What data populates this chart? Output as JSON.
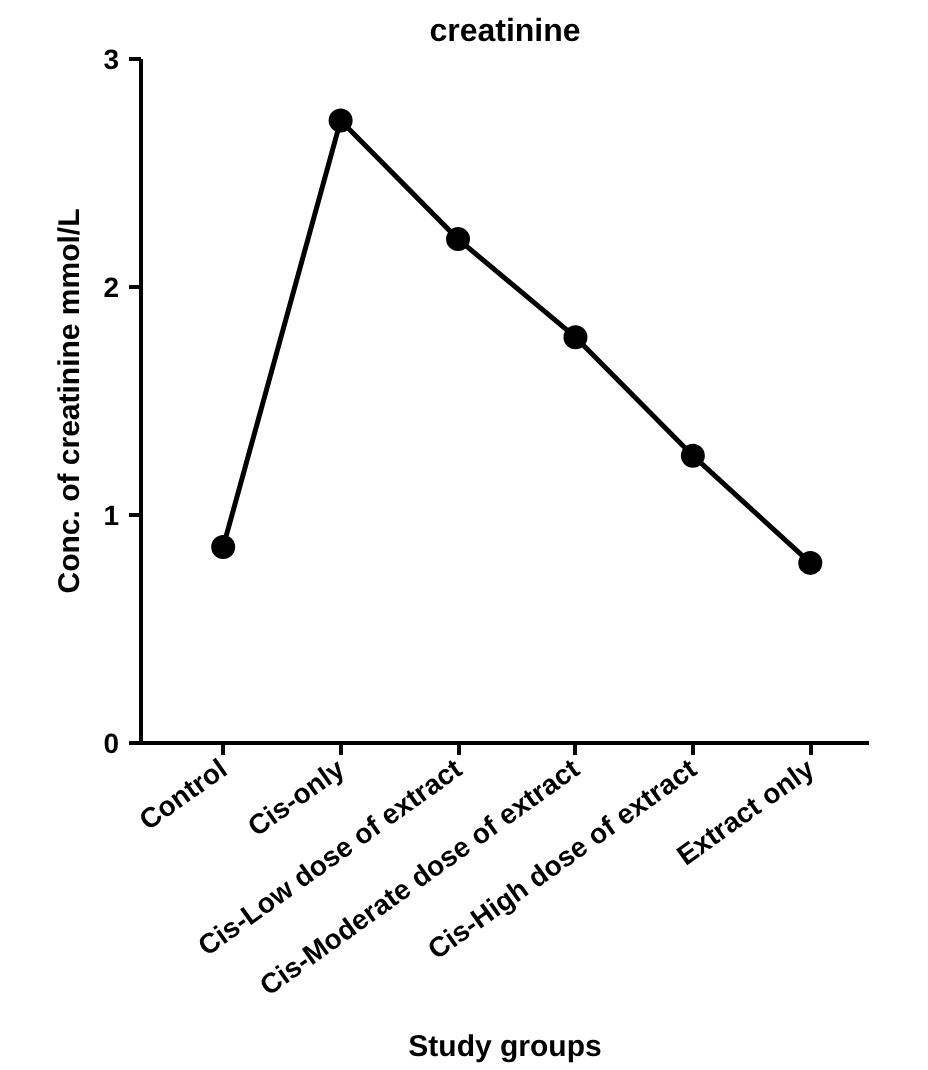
{
  "chart_data": {
    "type": "line",
    "title": "creatinine",
    "xlabel": "Study groups",
    "ylabel": "Conc. of creatinine mmol/L",
    "categories": [
      "Control",
      "Cis-only",
      "Cis-Low dose of extract",
      "Cis-Moderate dose of extract",
      "Cis-High dose of extract",
      "Extract only"
    ],
    "series": [
      {
        "color": "#000000",
        "values": [
          0.86,
          2.73,
          2.21,
          1.78,
          1.26,
          0.79
        ]
      }
    ],
    "ylim": [
      0,
      3
    ],
    "yticks": [
      0,
      1,
      2,
      3
    ],
    "grid": false,
    "marker": "circle",
    "line_style": "solid"
  }
}
